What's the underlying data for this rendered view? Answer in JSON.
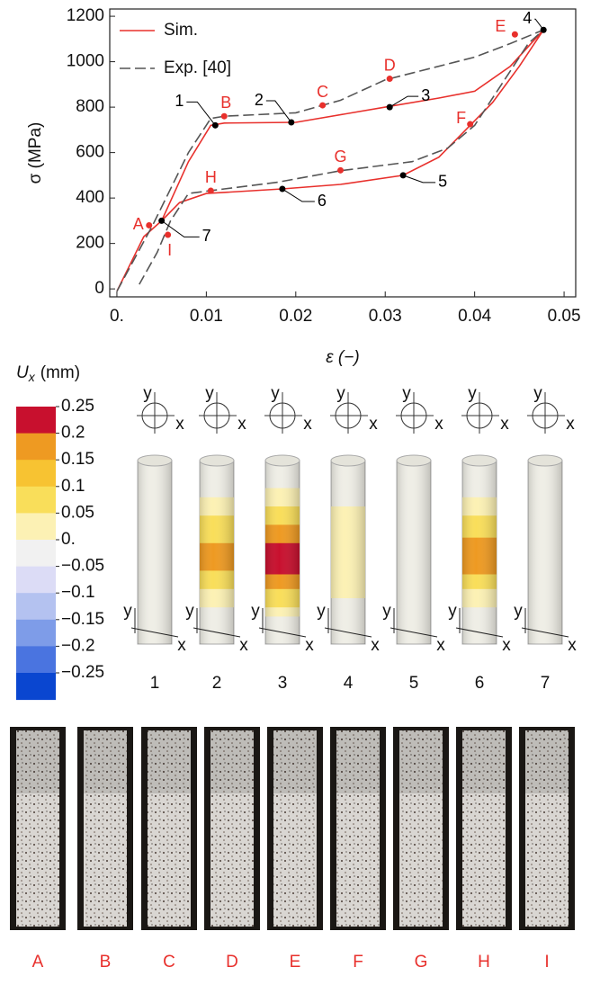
{
  "chart_data": {
    "type": "line",
    "xlabel": "ε (−)",
    "ylabel": "σ (MPa)",
    "xlim": [
      -0.0008,
      0.0513
    ],
    "ylim": [
      -35,
      1232
    ],
    "xticks": [
      {
        "value": 0,
        "label": "0."
      },
      0.01,
      0.02,
      0.03,
      0.04,
      0.05
    ],
    "yticks": [
      0,
      200,
      400,
      600,
      800,
      1000,
      1200
    ],
    "legend": "upper left",
    "series": [
      {
        "name": "Sim.",
        "color": "#e8302c",
        "style": "solid",
        "x": [
          0,
          0.003,
          0.005,
          0.008,
          0.0105,
          0.012,
          0.02,
          0.03,
          0.036,
          0.04,
          0.044,
          0.0477,
          0.045,
          0.042,
          0.0395,
          0.036,
          0.032,
          0.025,
          0.0185,
          0.01,
          0.007,
          0.005
        ],
        "values": [
          -10,
          230,
          300,
          560,
          720,
          730,
          733,
          800,
          840,
          870,
          980,
          1140,
          980,
          820,
          720,
          580,
          500,
          460,
          440,
          420,
          380,
          300
        ]
      },
      {
        "name": "Exp. [40]",
        "color": "#555555",
        "style": "dashed",
        "x": [
          0,
          0.004,
          0.008,
          0.0105,
          0.012,
          0.02,
          0.025,
          0.03,
          0.033,
          0.04,
          0.044,
          0.0477,
          0.046,
          0.043,
          0.04,
          0.037,
          0.033,
          0.025,
          0.018,
          0.012,
          0.008,
          0.006,
          0.0045,
          0.0025
        ],
        "values": [
          -10,
          280,
          600,
          750,
          760,
          775,
          830,
          920,
          950,
          1020,
          1080,
          1140,
          1080,
          900,
          720,
          620,
          560,
          520,
          470,
          440,
          420,
          300,
          160,
          20
        ]
      }
    ],
    "markers": [
      {
        "label": "1",
        "x": 0.011,
        "y": 720,
        "color": "#000000"
      },
      {
        "label": "2",
        "x": 0.0195,
        "y": 733,
        "color": "#000000"
      },
      {
        "label": "3",
        "x": 0.0305,
        "y": 800,
        "color": "#000000"
      },
      {
        "label": "4",
        "x": 0.0477,
        "y": 1140,
        "color": "#000000"
      },
      {
        "label": "5",
        "x": 0.032,
        "y": 500,
        "color": "#000000"
      },
      {
        "label": "6",
        "x": 0.0185,
        "y": 440,
        "color": "#000000"
      },
      {
        "label": "7",
        "x": 0.005,
        "y": 300,
        "color": "#000000"
      },
      {
        "label": "A",
        "x": 0.0036,
        "y": 280,
        "color": "#e8302c"
      },
      {
        "label": "B",
        "x": 0.012,
        "y": 760,
        "color": "#e8302c"
      },
      {
        "label": "C",
        "x": 0.023,
        "y": 808,
        "color": "#e8302c"
      },
      {
        "label": "D",
        "x": 0.0305,
        "y": 925,
        "color": "#e8302c"
      },
      {
        "label": "E",
        "x": 0.0445,
        "y": 1120,
        "color": "#e8302c"
      },
      {
        "label": "F",
        "x": 0.0395,
        "y": 725,
        "color": "#e8302c"
      },
      {
        "label": "G",
        "x": 0.025,
        "y": 522,
        "color": "#e8302c"
      },
      {
        "label": "H",
        "x": 0.0105,
        "y": 432,
        "color": "#e8302c"
      },
      {
        "label": "I",
        "x": 0.0057,
        "y": 238,
        "color": "#e8302c"
      }
    ]
  },
  "colorbar": {
    "symbol": "U",
    "subscript": "x",
    "unit": "(mm)",
    "labels": [
      "0.25",
      "0.2",
      "0.15",
      "0.1",
      "0.05",
      "0.",
      "−0.05",
      "−0.1",
      "−0.15",
      "−0.2",
      "−0.25"
    ],
    "colors": [
      "#c8102e",
      "#ee9a22",
      "#f7c332",
      "#f9de5a",
      "#fcf1b4",
      "#f1f1f1",
      "#dcdcf6",
      "#b4c2f0",
      "#7e9ce8",
      "#4a74e0",
      "#0a46d0"
    ]
  },
  "axis_labels": {
    "x": "x",
    "y": "y"
  },
  "cylinders": [
    "1",
    "2",
    "3",
    "4",
    "5",
    "6",
    "7"
  ],
  "photos": [
    "A",
    "B",
    "C",
    "D",
    "E",
    "F",
    "G",
    "H",
    "I"
  ]
}
